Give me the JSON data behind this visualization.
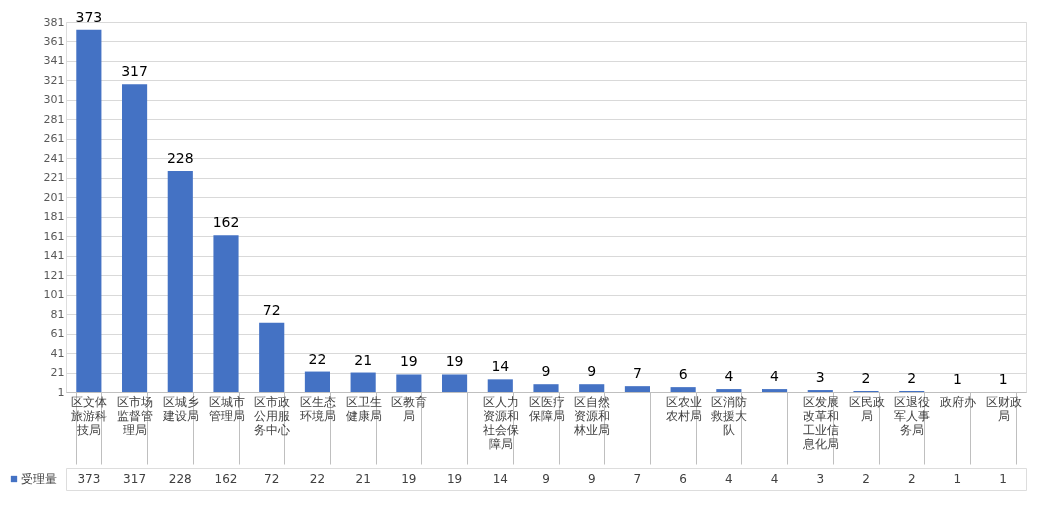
{
  "chart_data": {
    "type": "bar",
    "categories": [
      "区文体旅游科技局",
      "区市场监督管理局",
      "区城乡建设局",
      "区城市管理局",
      "区市政公用服务中心",
      "区生态环境局",
      "区卫生健康局",
      "区教育局",
      null,
      "区人力资源和社会保障局",
      "区医疗保障局",
      "区自然资源和林业局",
      null,
      "区农业农村局",
      "区消防救援大队",
      null,
      "区发展改革和工业信息化局",
      "区民政局",
      "区退役军人事务局",
      "政府办",
      "区财政局"
    ],
    "series": [
      {
        "name": "受理量",
        "color": "#4472c4",
        "values": [
          373,
          317,
          228,
          162,
          72,
          22,
          21,
          19,
          19,
          14,
          9,
          9,
          7,
          6,
          4,
          4,
          3,
          2,
          2,
          1,
          1
        ],
        "value_labels": [
          "373",
          "317",
          "228",
          "162",
          "72",
          "22",
          "21",
          "19",
          "19",
          "14",
          "9",
          "9",
          "7",
          "6",
          "4",
          "4",
          "3",
          "2",
          "2",
          "1",
          "1"
        ]
      }
    ],
    "ylim": [
      1,
      381
    ],
    "yticks": [
      1,
      21,
      41,
      61,
      81,
      101,
      121,
      141,
      161,
      181,
      201,
      221,
      241,
      261,
      281,
      301,
      321,
      341,
      361,
      381
    ],
    "grid": "y",
    "data_labels": true,
    "legend": "bottom"
  }
}
